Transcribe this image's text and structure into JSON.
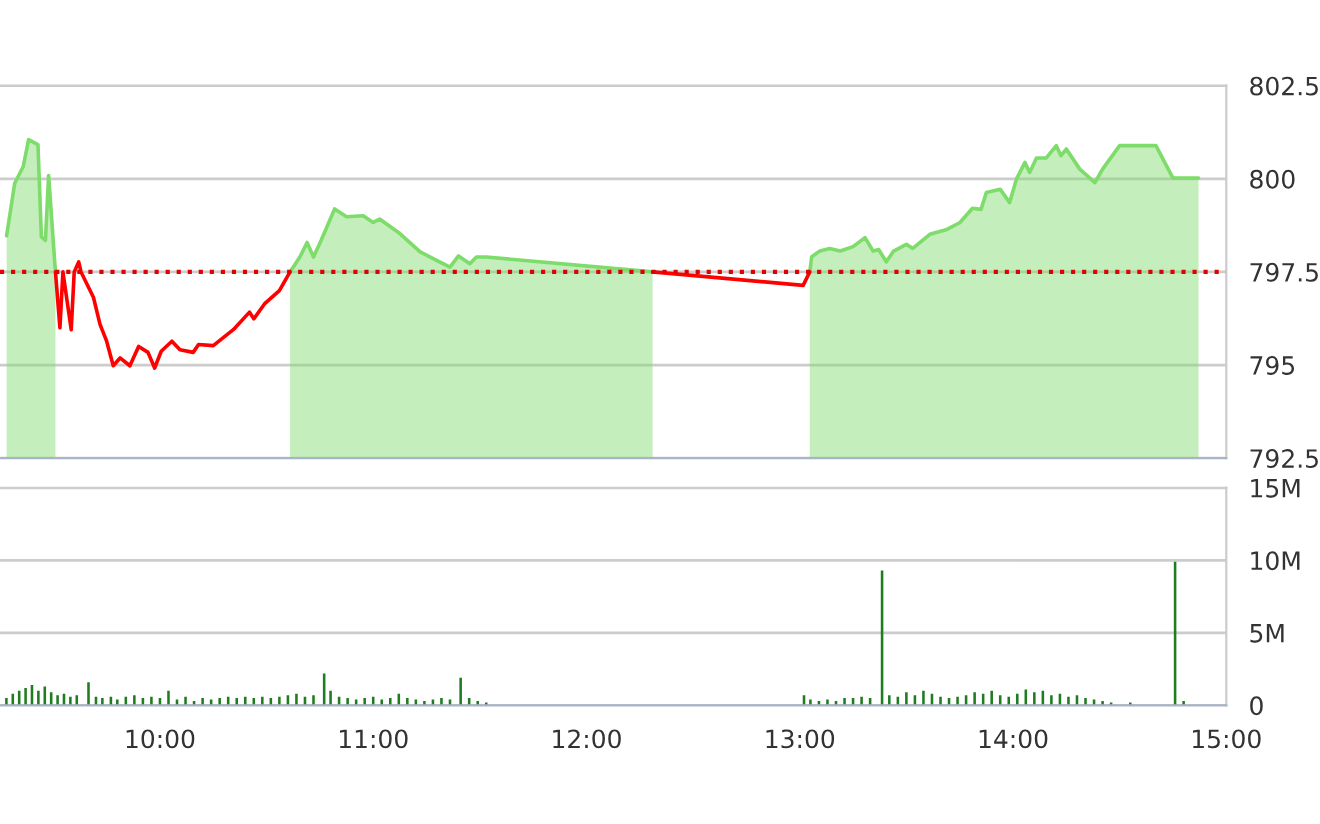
{
  "chart_data": [
    {
      "type": "line",
      "xlim": [
        9.25,
        15
      ],
      "ylim": [
        792.5,
        802.5
      ],
      "yticks": [
        792.5,
        795,
        797.5,
        800,
        802.5
      ],
      "grid": "y",
      "tick_labels": "y",
      "x": [
        9.281,
        9.319,
        9.359,
        9.384,
        9.428,
        9.444,
        9.463,
        9.478,
        9.506,
        9.51,
        9.531,
        9.545,
        9.584,
        9.598,
        9.619,
        9.63,
        9.688,
        9.719,
        9.75,
        9.781,
        9.813,
        9.859,
        9.9,
        9.944,
        9.975,
        10.006,
        10.056,
        10.094,
        10.156,
        10.181,
        10.25,
        10.344,
        10.42,
        10.44,
        10.49,
        10.56,
        10.61,
        10.656,
        10.69,
        10.72,
        10.756,
        10.819,
        10.875,
        10.953,
        11.0,
        11.03,
        11.125,
        11.22,
        11.297,
        11.36,
        11.4,
        11.453,
        11.484,
        11.53,
        12.31,
        13.016,
        13.047,
        13.056,
        13.094,
        13.14,
        13.19,
        13.25,
        13.306,
        13.344,
        13.37,
        13.406,
        13.44,
        13.5,
        13.53,
        13.61,
        13.69,
        13.75,
        13.81,
        13.85,
        13.875,
        13.94,
        13.984,
        14.016,
        14.056,
        14.078,
        14.11,
        14.156,
        14.203,
        14.225,
        14.25,
        14.313,
        14.384,
        14.42,
        14.5,
        14.67,
        14.75,
        14.87
      ],
      "series": [
        {
          "type": "area",
          "color": "#7ddc6a",
          "values": [
            798.47,
            799.88,
            800.33,
            801.05,
            800.92,
            798.44,
            798.35,
            800.09,
            797.81,
            797.5,
            null,
            null,
            null,
            null,
            null,
            null,
            null,
            null,
            null,
            null,
            null,
            null,
            null,
            null,
            null,
            null,
            null,
            null,
            null,
            null,
            null,
            null,
            null,
            null,
            null,
            null,
            797.5,
            797.9,
            798.29,
            797.9,
            798.35,
            799.19,
            798.98,
            799.01,
            798.83,
            798.92,
            798.53,
            798.04,
            797.81,
            797.63,
            797.93,
            797.72,
            797.9,
            797.9,
            797.5,
            null,
            797.5,
            797.91,
            798.06,
            798.13,
            798.06,
            798.18,
            798.42,
            798.06,
            798.1,
            797.77,
            798.06,
            798.24,
            798.13,
            798.51,
            798.64,
            798.82,
            799.21,
            799.18,
            799.63,
            799.72,
            799.36,
            799.99,
            800.44,
            800.17,
            800.56,
            800.56,
            800.89,
            800.62,
            800.8,
            800.26,
            799.9,
            800.26,
            800.89,
            800.89,
            800.02,
            800.02
          ]
        },
        {
          "type": "line",
          "color": "#ff0000",
          "values": [
            null,
            null,
            null,
            null,
            null,
            null,
            null,
            null,
            null,
            797.5,
            796.0,
            797.5,
            795.95,
            797.5,
            797.77,
            797.5,
            796.82,
            796.09,
            795.64,
            794.98,
            795.19,
            794.98,
            795.5,
            795.34,
            794.92,
            795.37,
            795.64,
            795.41,
            795.34,
            795.55,
            795.52,
            795.95,
            796.42,
            796.24,
            796.64,
            797.0,
            797.5,
            null,
            null,
            null,
            null,
            null,
            null,
            null,
            null,
            null,
            null,
            null,
            null,
            null,
            null,
            null,
            null,
            null,
            797.5,
            797.14,
            797.5,
            null,
            null,
            null,
            null,
            null,
            null,
            null,
            null,
            null,
            null,
            null,
            null,
            null,
            null,
            null,
            null,
            null,
            null,
            null,
            null,
            null,
            null,
            null,
            null,
            null,
            null,
            null,
            null,
            null,
            null,
            null,
            null,
            null,
            null,
            null
          ]
        }
      ],
      "ref_lines": [
        {
          "axis": "y",
          "value": 797.5,
          "color": "#e00000",
          "line_style": "dotted"
        }
      ]
    },
    {
      "type": "bar",
      "xlim": [
        9.25,
        15
      ],
      "ylim": [
        0,
        15
      ],
      "grid": "y",
      "xticks": [
        {
          "value": 10,
          "label": "10:00"
        },
        {
          "value": 11,
          "label": "11:00"
        },
        {
          "value": 12,
          "label": "12:00"
        },
        {
          "value": 13,
          "label": "13:00"
        },
        {
          "value": 14,
          "label": "14:00"
        },
        {
          "value": 15,
          "label": "15:00"
        }
      ],
      "yticks": [
        0,
        {
          "value": 5,
          "label": "5M"
        },
        {
          "value": 10,
          "label": "10M"
        },
        {
          "value": 15,
          "label": "15M"
        }
      ],
      "x": [
        9.28,
        9.31,
        9.34,
        9.37,
        9.4,
        9.43,
        9.46,
        9.49,
        9.52,
        9.55,
        9.58,
        9.61,
        9.665,
        9.7,
        9.73,
        9.77,
        9.8,
        9.84,
        9.88,
        9.92,
        9.96,
        10.0,
        10.04,
        10.08,
        10.12,
        10.16,
        10.2,
        10.24,
        10.28,
        10.32,
        10.36,
        10.4,
        10.44,
        10.48,
        10.52,
        10.56,
        10.6,
        10.64,
        10.68,
        10.72,
        10.77,
        10.8,
        10.84,
        10.88,
        10.92,
        10.96,
        11.0,
        11.04,
        11.08,
        11.12,
        11.16,
        11.2,
        11.24,
        11.28,
        11.32,
        11.36,
        11.41,
        11.45,
        11.49,
        11.53,
        13.02,
        13.05,
        13.09,
        13.13,
        13.17,
        13.21,
        13.25,
        13.29,
        13.33,
        13.386,
        13.42,
        13.46,
        13.5,
        13.54,
        13.58,
        13.62,
        13.66,
        13.7,
        13.74,
        13.78,
        13.82,
        13.86,
        13.9,
        13.94,
        13.98,
        14.02,
        14.06,
        14.1,
        14.14,
        14.18,
        14.22,
        14.26,
        14.3,
        14.34,
        14.38,
        14.42,
        14.46,
        14.55,
        14.76,
        14.8
      ],
      "series": [
        {
          "color": "#1e7d1e",
          "values": [
            0.5,
            0.8,
            1.0,
            1.2,
            1.4,
            1.0,
            1.3,
            0.9,
            0.7,
            0.8,
            0.6,
            0.7,
            1.6,
            0.6,
            0.5,
            0.6,
            0.4,
            0.6,
            0.7,
            0.5,
            0.6,
            0.5,
            1.0,
            0.4,
            0.6,
            0.3,
            0.5,
            0.4,
            0.5,
            0.6,
            0.5,
            0.6,
            0.5,
            0.6,
            0.5,
            0.6,
            0.7,
            0.8,
            0.6,
            0.7,
            2.2,
            1.0,
            0.6,
            0.5,
            0.4,
            0.5,
            0.6,
            0.4,
            0.5,
            0.8,
            0.5,
            0.4,
            0.3,
            0.4,
            0.5,
            0.4,
            1.9,
            0.5,
            0.3,
            0.2,
            0.7,
            0.4,
            0.3,
            0.4,
            0.3,
            0.5,
            0.5,
            0.6,
            0.5,
            9.3,
            0.7,
            0.6,
            0.9,
            0.7,
            1.0,
            0.8,
            0.6,
            0.5,
            0.6,
            0.7,
            0.9,
            0.8,
            1.0,
            0.7,
            0.6,
            0.8,
            1.1,
            0.9,
            1.0,
            0.7,
            0.8,
            0.6,
            0.7,
            0.5,
            0.4,
            0.3,
            0.2,
            0.2,
            9.9,
            0.3
          ]
        }
      ]
    }
  ]
}
